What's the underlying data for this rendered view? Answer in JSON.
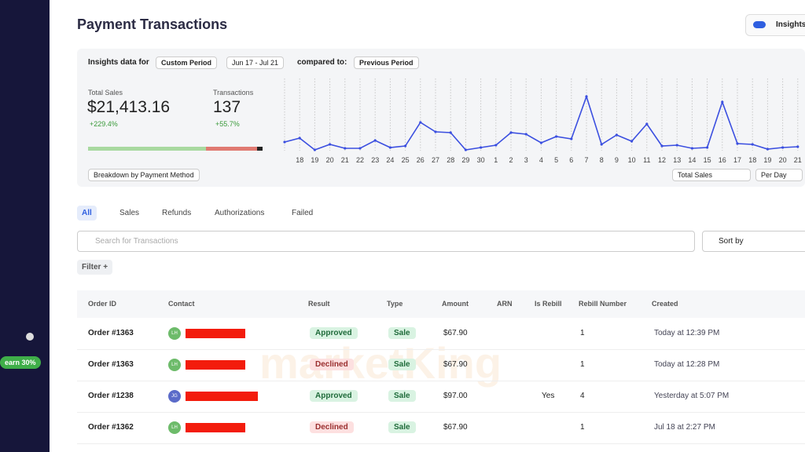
{
  "header": {
    "title": "Payment Transactions",
    "toggle": "Insights"
  },
  "insights": {
    "label": "Insights data for",
    "period": "Custom Period",
    "dates": "Jun 17 - Jul 21",
    "compared": "compared to:",
    "compare_period": "Previous Period",
    "total_sales_label": "Total Sales",
    "total_sales": "$21,413.16",
    "total_sales_change": "+229.4%",
    "transactions_label": "Transactions",
    "transactions": "137",
    "transactions_change": "+55.7%",
    "breakdown": "Breakdown by Payment Method",
    "metric": "Total Sales",
    "interval": "Per Day",
    "sparkline": {
      "type": "line",
      "color": "#3b4fe0",
      "categories": [
        null,
        "18",
        "19",
        "20",
        "21",
        "22",
        "23",
        "24",
        "25",
        "26",
        "27",
        "28",
        "29",
        "30",
        "1",
        "2",
        "3",
        "4",
        "5",
        "6",
        "7",
        "8",
        "9",
        "10",
        "11",
        "12",
        "13",
        "14",
        "15",
        "16",
        "17",
        "18",
        "19",
        "20",
        "21"
      ],
      "values": [
        11,
        16,
        1,
        8,
        3,
        3,
        13,
        4,
        6,
        36,
        24,
        23,
        1,
        4,
        7,
        23,
        21,
        10,
        18,
        15,
        69,
        8,
        20,
        12,
        34,
        6,
        7,
        3,
        4,
        62,
        9,
        8,
        2,
        4,
        5
      ]
    }
  },
  "sidebar": {
    "promo": "earn 30%"
  },
  "tabs": [
    "All",
    "Sales",
    "Refunds",
    "Authorizations",
    "Failed"
  ],
  "search": {
    "placeholder": "Search for Transactions",
    "sort": "Sort by",
    "filter": "Filter +"
  },
  "watermark": "marketKing",
  "table": {
    "headers": [
      "Order ID",
      "Contact",
      "Result",
      "Type",
      "Amount",
      "ARN",
      "Is Rebill",
      "Rebill Number",
      "Created"
    ],
    "rows": [
      {
        "order": "Order #1363",
        "avatar": "LH",
        "result": "Approved",
        "type": "Sale",
        "amount": "$67.90",
        "rebill_number": "1",
        "created": "Today at 12:39 PM"
      },
      {
        "order": "Order #1363",
        "avatar": "LH",
        "result": "Declined",
        "type": "Sale",
        "amount": "$67.90",
        "rebill_number": "1",
        "created": "Today at 12:28 PM"
      },
      {
        "order": "Order #1238",
        "avatar": "JG",
        "result": "Approved",
        "type": "Sale",
        "amount": "$97.00",
        "rebill": "Yes",
        "rebill_number": "4",
        "created": "Yesterday at 5:07 PM"
      },
      {
        "order": "Order #1362",
        "avatar": "LH",
        "result": "Declined",
        "type": "Sale",
        "amount": "$67.90",
        "rebill_number": "1",
        "created": "Jul 18 at 2:27 PM"
      }
    ]
  }
}
